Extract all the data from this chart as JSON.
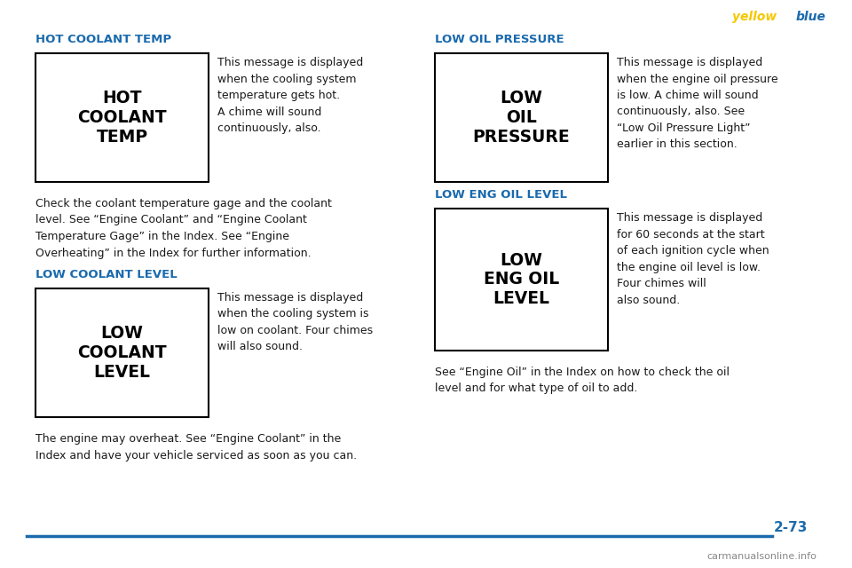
{
  "bg_color": "#ffffff",
  "page_number": "2-73",
  "watermark_yellow": "yellow",
  "watermark_blue": "blue",
  "header_color": "#1a6aad",
  "body_color": "#1a1a1a",
  "section1_heading": "HOT COOLANT TEMP",
  "section1_box_lines": [
    "HOT",
    "COOLANT",
    "TEMP"
  ],
  "section1_text": "This message is displayed\nwhen the cooling system\ntemperature gets hot.\nA chime will sound\ncontinuously, also.",
  "section1_body": "Check the coolant temperature gage and the coolant\nlevel. See “Engine Coolant” and “Engine Coolant\nTemperature Gage” in the Index. See “Engine\nOverheating” in the Index for further information.",
  "section2_heading": "LOW COOLANT LEVEL",
  "section2_box_lines": [
    "LOW",
    "COOLANT",
    "LEVEL"
  ],
  "section2_text": "This message is displayed\nwhen the cooling system is\nlow on coolant. Four chimes\nwill also sound.",
  "section2_body": "The engine may overheat. See “Engine Coolant” in the\nIndex and have your vehicle serviced as soon as you can.",
  "section3_heading": "LOW OIL PRESSURE",
  "section3_box_lines": [
    "LOW",
    "OIL",
    "PRESSURE"
  ],
  "section3_text": "This message is displayed\nwhen the engine oil pressure\nis low. A chime will sound\ncontinuously, also. See\n“Low Oil Pressure Light”\nearlier in this section.",
  "section4_heading": "LOW ENG OIL LEVEL",
  "section4_box_lines": [
    "LOW",
    "ENG OIL",
    "LEVEL"
  ],
  "section4_text": "This message is displayed\nfor 60 seconds at the start\nof each ignition cycle when\nthe engine oil level is low.\nFour chimes will\nalso sound.",
  "section4_body": "See “Engine Oil” in the Index on how to check the oil\nlevel and for what type of oil to add.",
  "bottom_line_color": "#1a6aad",
  "footer_text": "carmanualsonline.info"
}
